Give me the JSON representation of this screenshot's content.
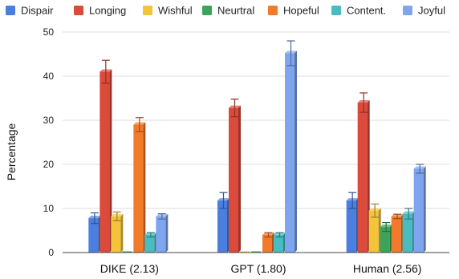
{
  "chart_data": {
    "type": "bar",
    "title": "",
    "xlabel": "",
    "ylabel": "Percentage",
    "ylim": [
      0,
      50
    ],
    "yticks": [
      0,
      10,
      20,
      30,
      40,
      50
    ],
    "grid": true,
    "legend_position": "top",
    "categories": [
      "DIKE (2.13)",
      "GPT (1.80)",
      "Human (2.56)"
    ],
    "series": [
      {
        "name": "Dispair",
        "color": "#4a7fe0",
        "values": [
          7.8,
          11.8,
          11.8
        ],
        "errors": [
          1.2,
          1.8,
          1.8
        ]
      },
      {
        "name": "Longing",
        "color": "#dc4a3c",
        "values": [
          41.0,
          32.8,
          34.0
        ],
        "errors": [
          2.6,
          2.0,
          2.2
        ]
      },
      {
        "name": "Wishful",
        "color": "#f3c43a",
        "values": [
          8.2,
          0.0,
          9.5
        ],
        "errors": [
          1.0,
          0.0,
          1.5
        ]
      },
      {
        "name": "Neurtral",
        "color": "#3ea35a",
        "values": [
          0.0,
          0.0,
          5.8
        ],
        "errors": [
          0.0,
          0.0,
          1.0
        ]
      },
      {
        "name": "Hopeful",
        "color": "#f27a2b",
        "values": [
          29.0,
          4.0,
          8.2
        ],
        "errors": [
          1.6,
          0.5,
          0.5
        ]
      },
      {
        "name": "Content.",
        "color": "#49bcc2",
        "values": [
          4.0,
          4.0,
          8.8
        ],
        "errors": [
          0.5,
          0.5,
          1.2
        ]
      },
      {
        "name": "Joyful",
        "color": "#7fa5ee",
        "values": [
          8.2,
          45.2,
          19.0
        ],
        "errors": [
          0.6,
          2.8,
          1.0
        ]
      }
    ]
  }
}
